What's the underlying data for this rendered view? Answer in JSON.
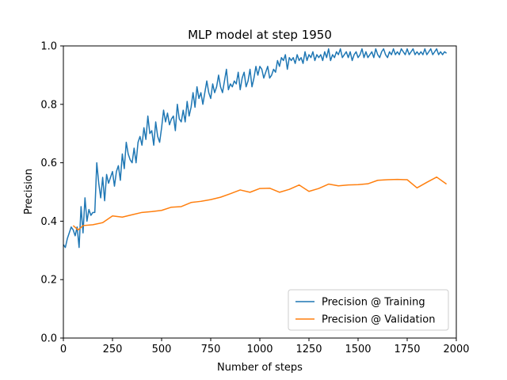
{
  "chart_data": {
    "type": "line",
    "title": "MLP model at step 1950",
    "xlabel": "Number of steps",
    "ylabel": "Precision",
    "xlim": [
      0,
      2000
    ],
    "ylim": [
      0.0,
      1.0
    ],
    "xticks": [
      0,
      250,
      500,
      750,
      1000,
      1250,
      1500,
      1750,
      2000
    ],
    "xtick_labels": [
      "0",
      "250",
      "500",
      "750",
      "1000",
      "1250",
      "1500",
      "1750",
      "2000"
    ],
    "yticks": [
      0.0,
      0.2,
      0.4,
      0.6,
      0.8,
      1.0
    ],
    "ytick_labels": [
      "0.0",
      "0.2",
      "0.4",
      "0.6",
      "0.8",
      "1.0"
    ],
    "grid": false,
    "legend_position": "bottom-right",
    "series": [
      {
        "name": "Precision @ Training",
        "color": "#1f77b4",
        "points": [
          [
            0,
            0.32
          ],
          [
            10,
            0.31
          ],
          [
            20,
            0.34
          ],
          [
            30,
            0.36
          ],
          [
            40,
            0.38
          ],
          [
            50,
            0.37
          ],
          [
            60,
            0.35
          ],
          [
            70,
            0.38
          ],
          [
            80,
            0.31
          ],
          [
            90,
            0.45
          ],
          [
            100,
            0.36
          ],
          [
            110,
            0.48
          ],
          [
            120,
            0.4
          ],
          [
            130,
            0.44
          ],
          [
            140,
            0.42
          ],
          [
            150,
            0.43
          ],
          [
            160,
            0.43
          ],
          [
            170,
            0.6
          ],
          [
            180,
            0.53
          ],
          [
            190,
            0.48
          ],
          [
            200,
            0.55
          ],
          [
            210,
            0.47
          ],
          [
            220,
            0.56
          ],
          [
            230,
            0.53
          ],
          [
            240,
            0.55
          ],
          [
            250,
            0.57
          ],
          [
            260,
            0.52
          ],
          [
            270,
            0.57
          ],
          [
            280,
            0.59
          ],
          [
            290,
            0.54
          ],
          [
            300,
            0.63
          ],
          [
            310,
            0.58
          ],
          [
            320,
            0.67
          ],
          [
            330,
            0.63
          ],
          [
            340,
            0.61
          ],
          [
            350,
            0.6
          ],
          [
            360,
            0.65
          ],
          [
            370,
            0.6
          ],
          [
            380,
            0.67
          ],
          [
            390,
            0.69
          ],
          [
            400,
            0.66
          ],
          [
            410,
            0.72
          ],
          [
            420,
            0.68
          ],
          [
            430,
            0.76
          ],
          [
            440,
            0.7
          ],
          [
            450,
            0.71
          ],
          [
            460,
            0.66
          ],
          [
            470,
            0.74
          ],
          [
            480,
            0.69
          ],
          [
            490,
            0.67
          ],
          [
            500,
            0.72
          ],
          [
            510,
            0.78
          ],
          [
            520,
            0.74
          ],
          [
            530,
            0.77
          ],
          [
            540,
            0.73
          ],
          [
            550,
            0.75
          ],
          [
            560,
            0.76
          ],
          [
            570,
            0.71
          ],
          [
            580,
            0.8
          ],
          [
            590,
            0.75
          ],
          [
            600,
            0.74
          ],
          [
            610,
            0.78
          ],
          [
            620,
            0.74
          ],
          [
            630,
            0.81
          ],
          [
            640,
            0.76
          ],
          [
            650,
            0.79
          ],
          [
            660,
            0.84
          ],
          [
            670,
            0.79
          ],
          [
            680,
            0.86
          ],
          [
            690,
            0.82
          ],
          [
            700,
            0.84
          ],
          [
            710,
            0.8
          ],
          [
            720,
            0.84
          ],
          [
            730,
            0.88
          ],
          [
            740,
            0.84
          ],
          [
            750,
            0.82
          ],
          [
            760,
            0.87
          ],
          [
            770,
            0.84
          ],
          [
            780,
            0.86
          ],
          [
            790,
            0.9
          ],
          [
            800,
            0.86
          ],
          [
            810,
            0.84
          ],
          [
            820,
            0.88
          ],
          [
            830,
            0.92
          ],
          [
            840,
            0.85
          ],
          [
            850,
            0.87
          ],
          [
            860,
            0.86
          ],
          [
            870,
            0.88
          ],
          [
            880,
            0.87
          ],
          [
            890,
            0.91
          ],
          [
            900,
            0.85
          ],
          [
            910,
            0.89
          ],
          [
            920,
            0.91
          ],
          [
            930,
            0.86
          ],
          [
            940,
            0.88
          ],
          [
            950,
            0.92
          ],
          [
            960,
            0.86
          ],
          [
            970,
            0.89
          ],
          [
            980,
            0.93
          ],
          [
            990,
            0.9
          ],
          [
            1000,
            0.93
          ],
          [
            1010,
            0.92
          ],
          [
            1020,
            0.89
          ],
          [
            1030,
            0.91
          ],
          [
            1040,
            0.93
          ],
          [
            1050,
            0.89
          ],
          [
            1060,
            0.9
          ],
          [
            1070,
            0.92
          ],
          [
            1080,
            0.91
          ],
          [
            1090,
            0.95
          ],
          [
            1100,
            0.93
          ],
          [
            1110,
            0.96
          ],
          [
            1120,
            0.95
          ],
          [
            1130,
            0.97
          ],
          [
            1140,
            0.92
          ],
          [
            1150,
            0.96
          ],
          [
            1160,
            0.95
          ],
          [
            1170,
            0.96
          ],
          [
            1180,
            0.94
          ],
          [
            1190,
            0.97
          ],
          [
            1200,
            0.95
          ],
          [
            1210,
            0.96
          ],
          [
            1220,
            0.94
          ],
          [
            1230,
            0.98
          ],
          [
            1240,
            0.95
          ],
          [
            1250,
            0.97
          ],
          [
            1260,
            0.96
          ],
          [
            1270,
            0.98
          ],
          [
            1280,
            0.95
          ],
          [
            1290,
            0.97
          ],
          [
            1300,
            0.96
          ],
          [
            1310,
            0.97
          ],
          [
            1320,
            0.95
          ],
          [
            1330,
            0.98
          ],
          [
            1340,
            0.96
          ],
          [
            1350,
            0.99
          ],
          [
            1360,
            0.95
          ],
          [
            1370,
            0.97
          ],
          [
            1380,
            0.96
          ],
          [
            1390,
            0.98
          ],
          [
            1400,
            0.97
          ],
          [
            1410,
            0.99
          ],
          [
            1420,
            0.96
          ],
          [
            1430,
            0.97
          ],
          [
            1440,
            0.98
          ],
          [
            1450,
            0.96
          ],
          [
            1460,
            0.98
          ],
          [
            1470,
            0.95
          ],
          [
            1480,
            0.97
          ],
          [
            1490,
            0.98
          ],
          [
            1500,
            0.96
          ],
          [
            1510,
            0.97
          ],
          [
            1520,
            0.99
          ],
          [
            1530,
            0.96
          ],
          [
            1540,
            0.98
          ],
          [
            1550,
            0.96
          ],
          [
            1560,
            0.97
          ],
          [
            1570,
            0.98
          ],
          [
            1580,
            0.96
          ],
          [
            1590,
            0.99
          ],
          [
            1600,
            0.97
          ],
          [
            1610,
            0.96
          ],
          [
            1620,
            0.98
          ],
          [
            1630,
            0.99
          ],
          [
            1640,
            0.97
          ],
          [
            1650,
            0.96
          ],
          [
            1660,
            0.98
          ],
          [
            1670,
            0.97
          ],
          [
            1680,
            0.99
          ],
          [
            1690,
            0.97
          ],
          [
            1700,
            0.98
          ],
          [
            1710,
            0.97
          ],
          [
            1720,
            0.99
          ],
          [
            1730,
            0.98
          ],
          [
            1740,
            0.97
          ],
          [
            1750,
            0.99
          ],
          [
            1760,
            0.97
          ],
          [
            1770,
            0.98
          ],
          [
            1780,
            0.99
          ],
          [
            1790,
            0.97
          ],
          [
            1800,
            0.98
          ],
          [
            1810,
            0.97
          ],
          [
            1820,
            0.98
          ],
          [
            1830,
            0.97
          ],
          [
            1840,
            0.99
          ],
          [
            1850,
            0.97
          ],
          [
            1860,
            0.98
          ],
          [
            1870,
            0.99
          ],
          [
            1880,
            0.97
          ],
          [
            1890,
            0.98
          ],
          [
            1900,
            0.99
          ],
          [
            1910,
            0.97
          ],
          [
            1920,
            0.98
          ],
          [
            1930,
            0.97
          ],
          [
            1940,
            0.98
          ],
          [
            1950,
            0.975
          ]
        ]
      },
      {
        "name": "Precision @ Validation",
        "color": "#ff7f0e",
        "points": [
          [
            50,
            0.385
          ],
          [
            75,
            0.37
          ],
          [
            100,
            0.385
          ],
          [
            150,
            0.388
          ],
          [
            200,
            0.395
          ],
          [
            250,
            0.418
          ],
          [
            300,
            0.414
          ],
          [
            350,
            0.422
          ],
          [
            400,
            0.43
          ],
          [
            450,
            0.433
          ],
          [
            500,
            0.437
          ],
          [
            550,
            0.448
          ],
          [
            600,
            0.45
          ],
          [
            650,
            0.464
          ],
          [
            700,
            0.468
          ],
          [
            750,
            0.474
          ],
          [
            800,
            0.482
          ],
          [
            850,
            0.494
          ],
          [
            900,
            0.507
          ],
          [
            950,
            0.499
          ],
          [
            1000,
            0.512
          ],
          [
            1050,
            0.513
          ],
          [
            1100,
            0.499
          ],
          [
            1150,
            0.509
          ],
          [
            1200,
            0.524
          ],
          [
            1250,
            0.502
          ],
          [
            1300,
            0.512
          ],
          [
            1350,
            0.527
          ],
          [
            1400,
            0.521
          ],
          [
            1450,
            0.524
          ],
          [
            1500,
            0.525
          ],
          [
            1550,
            0.528
          ],
          [
            1600,
            0.54
          ],
          [
            1650,
            0.542
          ],
          [
            1700,
            0.543
          ],
          [
            1750,
            0.542
          ],
          [
            1800,
            0.514
          ],
          [
            1850,
            0.533
          ],
          [
            1900,
            0.551
          ],
          [
            1950,
            0.527
          ]
        ]
      }
    ]
  }
}
